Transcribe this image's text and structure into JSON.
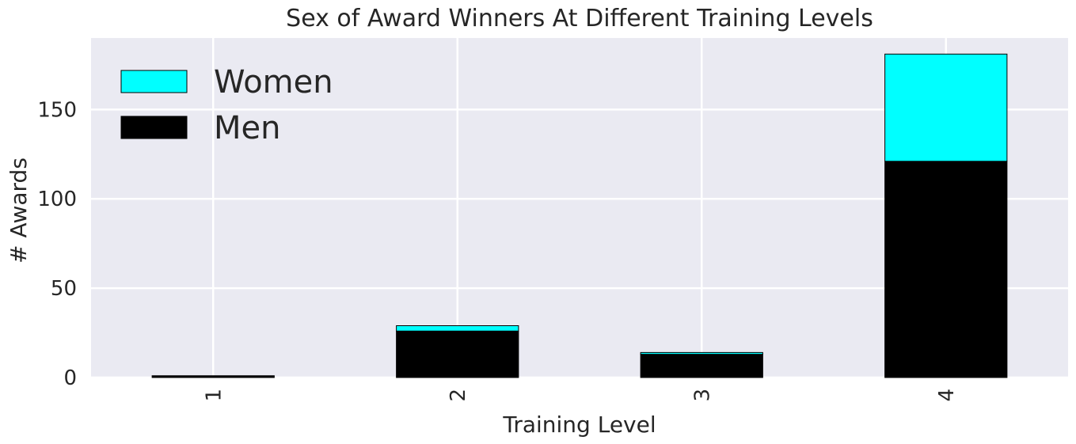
{
  "chart_data": {
    "type": "bar",
    "stacked": true,
    "title": "Sex of Award Winners At Different Training Levels",
    "xlabel": "Training Level",
    "ylabel": "# Awards",
    "categories": [
      "1",
      "2",
      "3",
      "4"
    ],
    "series": [
      {
        "name": "Men",
        "values": [
          1,
          26,
          13,
          121
        ],
        "color": "#000000"
      },
      {
        "name": "Women",
        "values": [
          0,
          3,
          1,
          60
        ],
        "color": "#00ffff"
      }
    ],
    "ylim": [
      0,
      190
    ],
    "yticks": [
      0,
      50,
      100,
      150
    ],
    "legend_order": [
      "Women",
      "Men"
    ],
    "legend_position": "top-left",
    "grid": true,
    "background": "#eaeaf2",
    "gridColor": "#ffffff",
    "xtick_rotation": 90
  }
}
